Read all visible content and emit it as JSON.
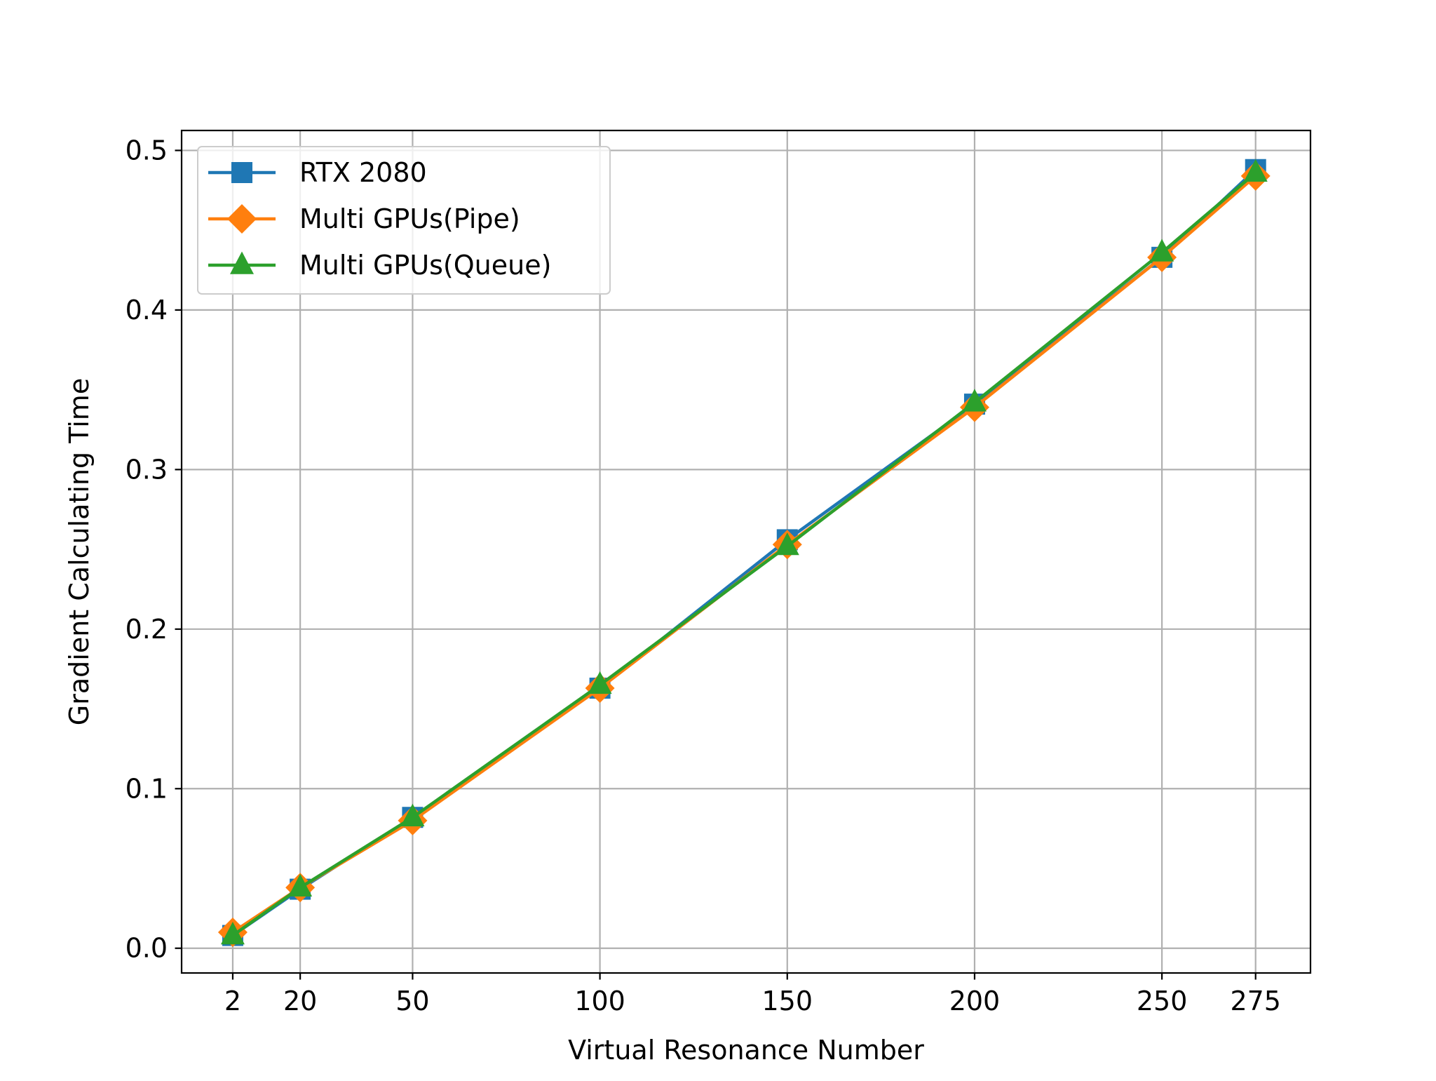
{
  "chart_data": {
    "type": "line",
    "title": "",
    "xlabel": "Virtual Resonance Number",
    "ylabel": "Gradient Calculating Time",
    "x": [
      2,
      20,
      50,
      100,
      150,
      200,
      250,
      275
    ],
    "x_ticks": [
      2,
      20,
      50,
      100,
      150,
      200,
      250,
      275
    ],
    "x_tick_labels": [
      "2",
      "20",
      "50",
      "100",
      "150",
      "200",
      "250",
      "275"
    ],
    "y_ticks": [
      0.0,
      0.1,
      0.2,
      0.3,
      0.4,
      0.5
    ],
    "y_tick_labels": [
      "0.0",
      "0.1",
      "0.2",
      "0.3",
      "0.4",
      "0.5"
    ],
    "xlim": [
      -11.65,
      289.65
    ],
    "ylim": [
      -0.0155,
      0.5125
    ],
    "grid": true,
    "legend_position": "upper-left",
    "series": [
      {
        "name": "RTX 2080",
        "marker": "square",
        "color": "#1f77b4",
        "values": [
          0.008,
          0.037,
          0.082,
          0.163,
          0.256,
          0.341,
          0.433,
          0.488
        ]
      },
      {
        "name": "Multi GPUs(Pipe)",
        "marker": "diamond",
        "color": "#ff7f0e",
        "values": [
          0.01,
          0.038,
          0.08,
          0.163,
          0.253,
          0.339,
          0.433,
          0.484
        ]
      },
      {
        "name": "Multi GPUs(Queue)",
        "marker": "triangle",
        "color": "#2ca02c",
        "values": [
          0.008,
          0.038,
          0.082,
          0.165,
          0.252,
          0.342,
          0.436,
          0.486
        ]
      }
    ]
  }
}
